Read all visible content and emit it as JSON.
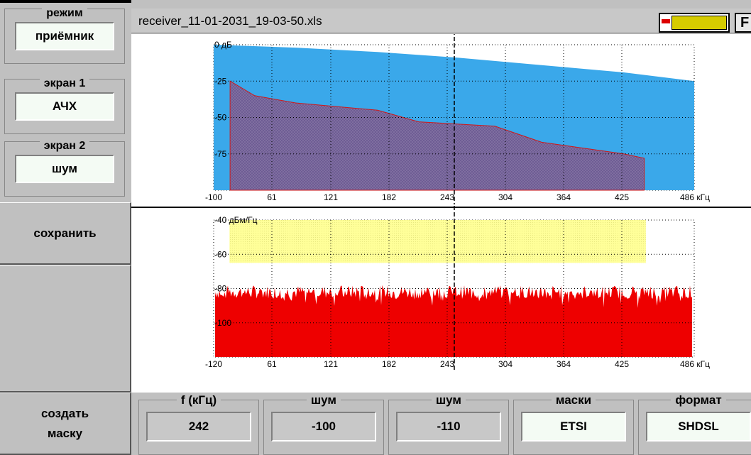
{
  "sidebar": {
    "mode": {
      "title": "режим",
      "value": "приёмник"
    },
    "screen1": {
      "title": "экран 1",
      "value": "АЧХ"
    },
    "screen2": {
      "title": "экран 2",
      "value": "шум"
    },
    "save_label": "сохранить",
    "create_mask_label": "создать маску"
  },
  "header": {
    "filename": "receiver_11-01-2031_19-03-50.xls",
    "f_button": "F"
  },
  "bottom": {
    "fields": [
      {
        "title": "f (кГц)",
        "value": "242",
        "style": "gray"
      },
      {
        "title": "шум",
        "value": "-100",
        "style": "gray"
      },
      {
        "title": "шум",
        "value": "-110",
        "style": "gray"
      },
      {
        "title": "маски",
        "value": "ETSI",
        "style": "light"
      },
      {
        "title": "формат",
        "value": "SHDSL",
        "style": "light"
      }
    ]
  },
  "colors": {
    "mask_fill": "#3aa8ea",
    "response_fill": "#6c5a92",
    "response_line": "#d01818",
    "noise_mask_fill": "#ffff99",
    "noise_fill": "#ee0000",
    "battery": "#d6cc00"
  },
  "chart_data": [
    {
      "type": "area",
      "name": "frequency-response",
      "x_ticks": [
        "-100",
        "61",
        "121",
        "182",
        "243",
        "304",
        "364",
        "425",
        "486 кГц"
      ],
      "y_ticks": [
        "0 дБ",
        "-25",
        "-50",
        "-75"
      ],
      "ylim": [
        -100,
        0
      ],
      "xlim": [
        -100,
        486
      ],
      "grid": true,
      "cursor_x": 242,
      "series": [
        {
          "role": "mask",
          "x": [
            -100,
            0,
            100,
            200,
            300,
            400,
            486
          ],
          "y": [
            0,
            -2,
            -5,
            -9,
            -14,
            -19,
            -25
          ]
        },
        {
          "role": "response",
          "x": [
            -80,
            -80,
            -50,
            0,
            100,
            150,
            243,
            300,
            400,
            425,
            425
          ],
          "y": [
            -100,
            -25,
            -35,
            -40,
            -45,
            -53,
            -56,
            -67,
            -75,
            -78,
            -100
          ]
        }
      ]
    },
    {
      "type": "area",
      "name": "noise-spectrum",
      "x_ticks": [
        "-120",
        "61",
        "121",
        "182",
        "243",
        "304",
        "364",
        "425",
        "486 кГц"
      ],
      "y_ticks": [
        "-40 дБм/Гц",
        "-60",
        "-80",
        "-100"
      ],
      "ylim": [
        -120,
        -40
      ],
      "xlim": [
        -120,
        486
      ],
      "grid": true,
      "cursor_x": 242,
      "noise_mask": {
        "x": [
          -100,
          425
        ],
        "y": [
          -65,
          -40
        ]
      },
      "noise_level_range": [
        -86,
        -78
      ],
      "noise_floor": -120
    }
  ]
}
